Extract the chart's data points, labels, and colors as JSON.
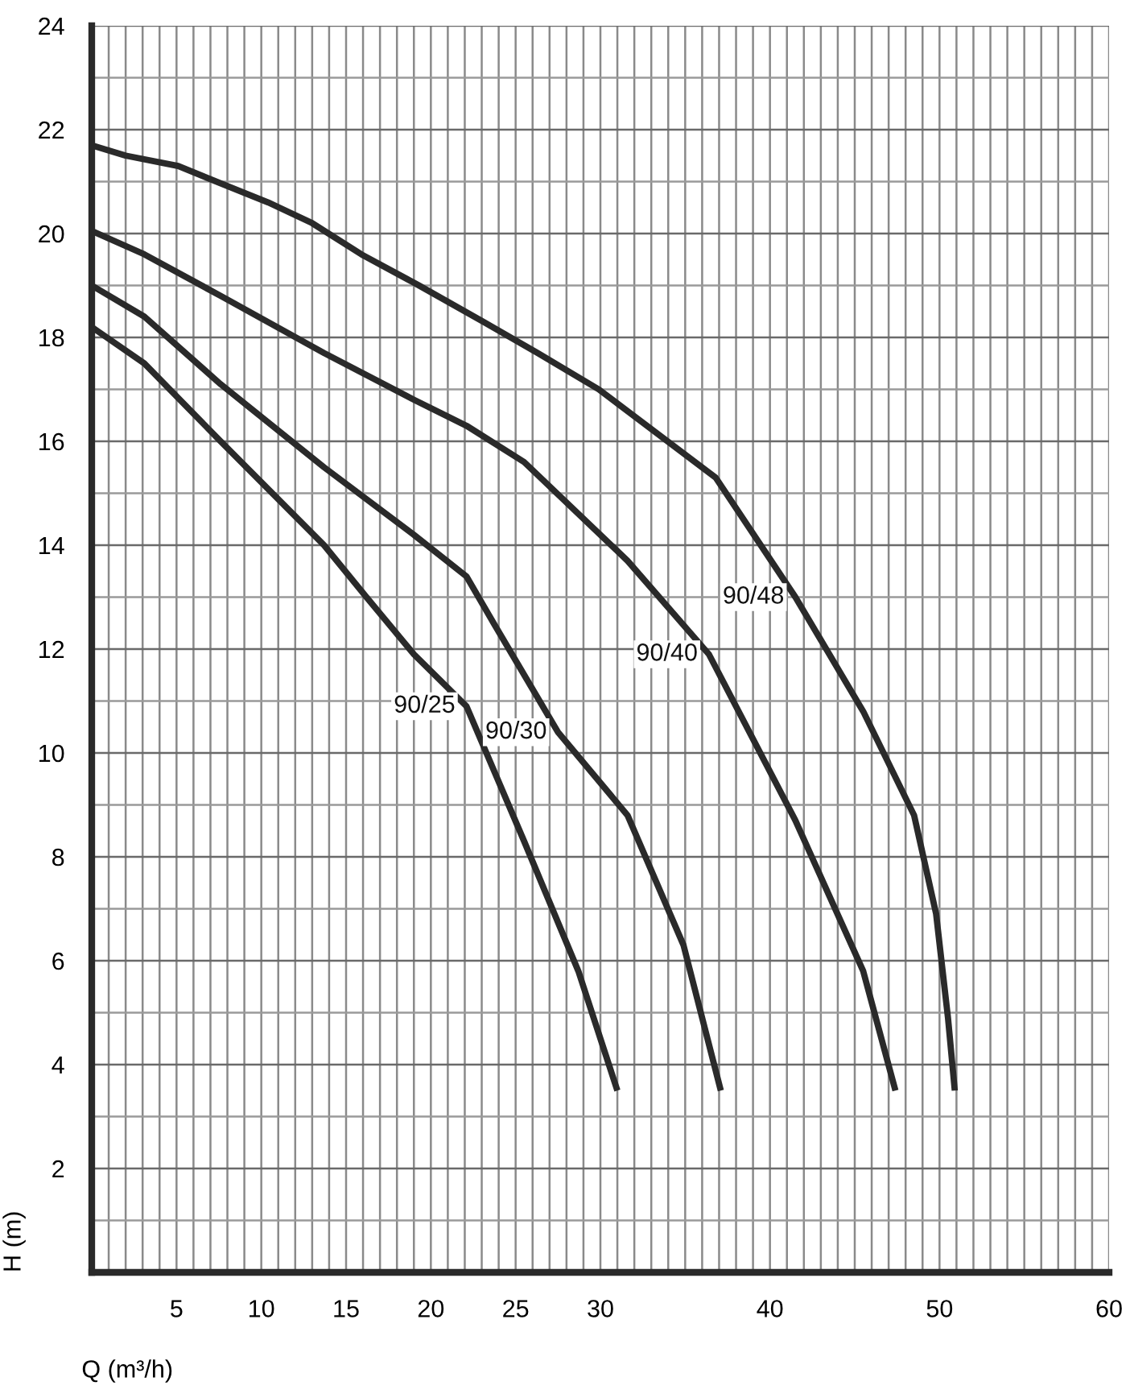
{
  "chart_data": {
    "type": "line",
    "xlabel": "Q (m³/h)",
    "ylabel": "H (m)",
    "xlim": [
      0,
      60
    ],
    "ylim": [
      0,
      24
    ],
    "xticks": [
      5,
      10,
      15,
      20,
      25,
      30,
      40,
      50,
      60
    ],
    "yticks": [
      2,
      4,
      6,
      8,
      10,
      12,
      14,
      16,
      18,
      20,
      22,
      24
    ],
    "grid": true,
    "legend": false,
    "marker": "none",
    "line_style": "solid",
    "series": [
      {
        "name": "90/48",
        "color": "#2a2a2a",
        "x": [
          0,
          2,
          5.1,
          8.1,
          10.4,
          13,
          15.9,
          19.3,
          23.1,
          26.3,
          29.9,
          36.8,
          41.5,
          45.5,
          48.5,
          49.8,
          50.5,
          50.9
        ],
        "values": [
          21.7,
          21.5,
          21.3,
          20.9,
          20.6,
          20.2,
          19.6,
          19.0,
          18.3,
          17.7,
          17.0,
          15.3,
          13.0,
          10.8,
          8.8,
          6.9,
          4.9,
          3.5
        ]
      },
      {
        "name": "90/40",
        "color": "#2a2a2a",
        "x": [
          0,
          3.1,
          7.6,
          13.7,
          19.0,
          22.1,
          25.5,
          31.6,
          36.4,
          41.5,
          45.5,
          47.4
        ],
        "values": [
          20.05,
          19.6,
          18.8,
          17.7,
          16.8,
          16.3,
          15.6,
          13.7,
          11.9,
          8.7,
          5.8,
          3.5
        ]
      },
      {
        "name": "90/30",
        "color": "#2a2a2a",
        "x": [
          0,
          3.1,
          7.6,
          13.7,
          19.0,
          22.1,
          23.7,
          27.5,
          31.6,
          34.9,
          37.1
        ],
        "values": [
          19.0,
          18.4,
          17.1,
          15.5,
          14.2,
          13.4,
          12.5,
          10.4,
          8.8,
          6.3,
          3.5
        ]
      },
      {
        "name": "90/25",
        "color": "#2a2a2a",
        "x": [
          0,
          3.1,
          7.6,
          13.7,
          16.2,
          19.0,
          22.1,
          25.5,
          28.7,
          31.0
        ],
        "values": [
          18.2,
          17.5,
          16.0,
          14.0,
          13.0,
          11.9,
          10.9,
          8.3,
          5.8,
          3.5
        ]
      }
    ]
  }
}
